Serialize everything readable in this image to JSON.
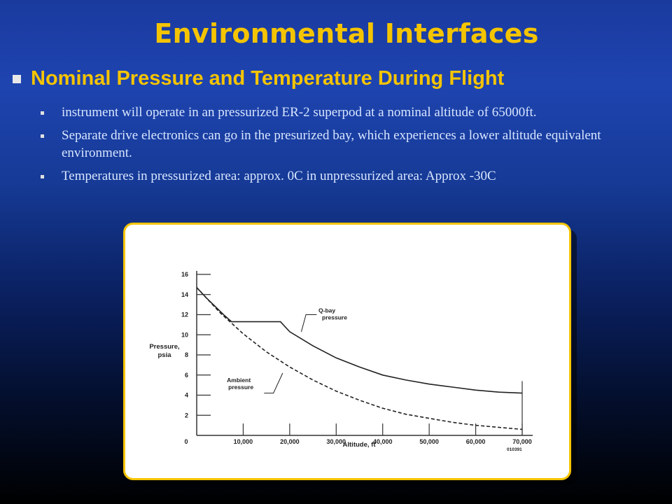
{
  "slide": {
    "title": "Environmental Interfaces",
    "heading": "Nominal Pressure and Temperature During Flight",
    "bullets": [
      "instrument will operate in an pressurized ER-2 superpod at a nominal altitude of 65000ft.",
      "Separate drive electronics can go in the presurized bay, which experiences a lower altitude equivalent environment.",
      "Temperatures in pressurized area:  approx. 0C in unpressurized area:  Approx -30C"
    ],
    "title_color": "#f5c400",
    "frame_color": "#f5c400"
  },
  "chart_data": {
    "type": "line",
    "xlabel": "Altitude, ft",
    "ylabel": "Pressure, psia",
    "xlim": [
      0,
      70000
    ],
    "ylim": [
      0,
      16
    ],
    "x_ticks": [
      "0",
      "10,000",
      "20,000",
      "30,000",
      "40,000",
      "50,000",
      "60,000",
      "70,000"
    ],
    "y_ticks": [
      "2",
      "4",
      "6",
      "8",
      "10",
      "12",
      "14",
      "16"
    ],
    "x_tick_values": [
      0,
      10000,
      20000,
      30000,
      40000,
      50000,
      60000,
      70000
    ],
    "y_tick_values": [
      2,
      4,
      6,
      8,
      10,
      12,
      14,
      16
    ],
    "figure_id": "010391",
    "series": [
      {
        "name": "Q-bay pressure",
        "style": "solid",
        "x": [
          0,
          2000,
          4000,
          6000,
          7500,
          10000,
          15000,
          18000,
          20000,
          25000,
          30000,
          35000,
          40000,
          45000,
          50000,
          55000,
          60000,
          65000,
          70000
        ],
        "y": [
          14.7,
          13.7,
          12.8,
          11.9,
          11.3,
          11.3,
          11.3,
          11.3,
          10.3,
          8.9,
          7.7,
          6.8,
          6.0,
          5.5,
          5.1,
          4.8,
          4.5,
          4.3,
          4.2
        ]
      },
      {
        "name": "Ambient pressure",
        "style": "dashed",
        "x": [
          0,
          5000,
          10000,
          15000,
          20000,
          25000,
          30000,
          35000,
          40000,
          45000,
          50000,
          55000,
          60000,
          65000,
          70000
        ],
        "y": [
          14.7,
          12.2,
          10.1,
          8.3,
          6.8,
          5.5,
          4.4,
          3.5,
          2.7,
          2.1,
          1.7,
          1.3,
          1.0,
          0.8,
          0.6
        ]
      }
    ],
    "annotations": [
      {
        "label": "Q-bay\npressure",
        "series": 0
      },
      {
        "label": "Ambient\npressure",
        "series": 1
      }
    ],
    "reference_line_x": 70000
  }
}
